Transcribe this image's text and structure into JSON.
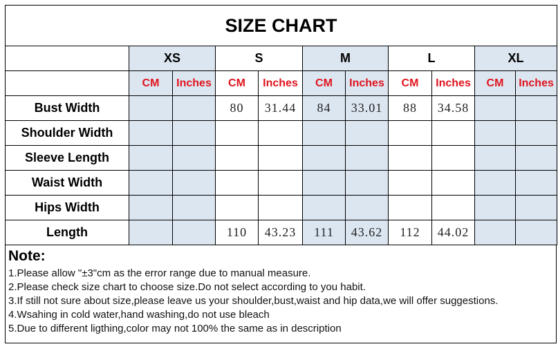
{
  "title": "SIZE CHART",
  "sizes": [
    "XS",
    "S",
    "M",
    "L",
    "XL"
  ],
  "units": [
    "CM",
    "Inches"
  ],
  "shade_color": "#dce6f1",
  "unit_color": "#e0141e",
  "rows": [
    {
      "label": "Bust Width",
      "values": [
        "",
        "",
        "80",
        "31.44",
        "84",
        "33.01",
        "88",
        "34.58",
        "",
        ""
      ]
    },
    {
      "label": "Shoulder Width",
      "values": [
        "",
        "",
        "",
        "",
        "",
        "",
        "",
        "",
        "",
        ""
      ]
    },
    {
      "label": "Sleeve Length",
      "values": [
        "",
        "",
        "",
        "",
        "",
        "",
        "",
        "",
        "",
        ""
      ]
    },
    {
      "label": "Waist Width",
      "values": [
        "",
        "",
        "",
        "",
        "",
        "",
        "",
        "",
        "",
        ""
      ]
    },
    {
      "label": "Hips Width",
      "values": [
        "",
        "",
        "",
        "",
        "",
        "",
        "",
        "",
        "",
        ""
      ]
    },
    {
      "label": "Length",
      "values": [
        "",
        "",
        "110",
        "43.23",
        "111",
        "43.62",
        "112",
        "44.02",
        "",
        ""
      ]
    }
  ],
  "notes": {
    "heading": "Note:",
    "items": [
      "1.Please allow \"±3\"cm as the error range due to manual measure.",
      "2.Please check size chart to choose size.Do not select according to you habit.",
      "3.If still not sure about size,please leave us your shoulder,bust,waist and hip data,we will offer suggestions.",
      "4.Wsahing in cold water,hand washing,do not use bleach",
      "5.Due to different ligthing,color may not 100% the same as in description"
    ]
  }
}
